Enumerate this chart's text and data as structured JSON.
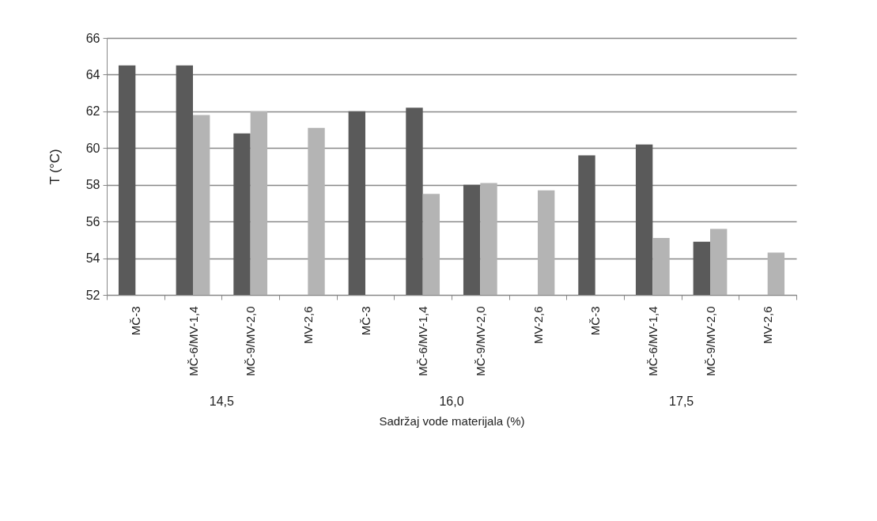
{
  "chart_data": {
    "type": "bar",
    "xlabel": "Sadržaj vode materijala (%)",
    "ylabel": "T (°C)",
    "categories": [
      "MČ-3",
      "MČ-6/MV-1,4",
      "MČ-9/MV-2,0",
      "MV-2,6",
      "MČ-3",
      "MČ-6/MV-1,4",
      "MČ-9/MV-2,0",
      "MV-2,6",
      "MČ-3",
      "MČ-6/MV-1,4",
      "MČ-9/MV-2,0",
      "MV-2,6"
    ],
    "series": [
      {
        "color": "#5a5a5a",
        "values": [
          64.5,
          64.5,
          60.8,
          null,
          62.0,
          62.2,
          58.0,
          null,
          59.6,
          60.2,
          54.9,
          null
        ]
      },
      {
        "color": "#b4b4b4",
        "values": [
          null,
          61.8,
          62.0,
          61.1,
          null,
          57.5,
          58.1,
          57.7,
          null,
          55.1,
          55.6,
          54.3
        ]
      }
    ],
    "annotations": [
      "14,5",
      "16,0",
      "17,5"
    ],
    "ylim": [
      52,
      66
    ],
    "yticks": [
      52,
      54,
      56,
      58,
      60,
      62,
      64,
      66
    ],
    "grid": "y",
    "legend": false
  }
}
